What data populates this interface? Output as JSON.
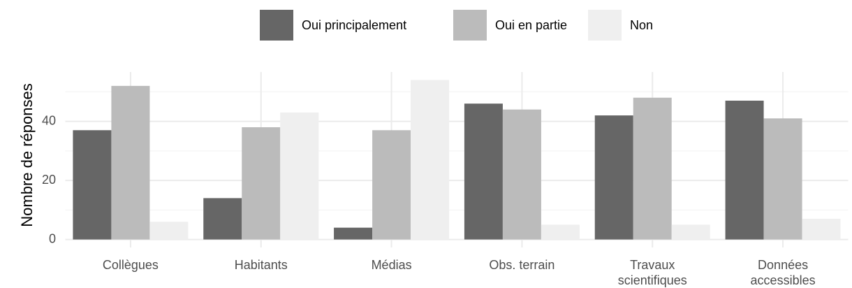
{
  "chart_data": {
    "type": "bar",
    "categories": [
      "Collègues",
      "Habitants",
      "Médias",
      "Obs. terrain",
      "Travaux\nscientifiques",
      "Données\naccessibles"
    ],
    "series": [
      {
        "name": "Oui principalement",
        "color": "#666666",
        "values": [
          37,
          14,
          4,
          46,
          42,
          47
        ]
      },
      {
        "name": "Oui en partie",
        "color": "#bbbbbb",
        "values": [
          52,
          38,
          37,
          44,
          48,
          41
        ]
      },
      {
        "name": "Non",
        "color": "#efefef",
        "values": [
          6,
          43,
          54,
          5,
          5,
          7
        ]
      }
    ],
    "y_label": "Nombre de réponses",
    "ylim": [
      -2.7,
      56.7
    ],
    "yticks": [
      0,
      20,
      40
    ],
    "yminor": [
      10,
      30,
      50
    ],
    "grid": true,
    "legend": "top"
  }
}
